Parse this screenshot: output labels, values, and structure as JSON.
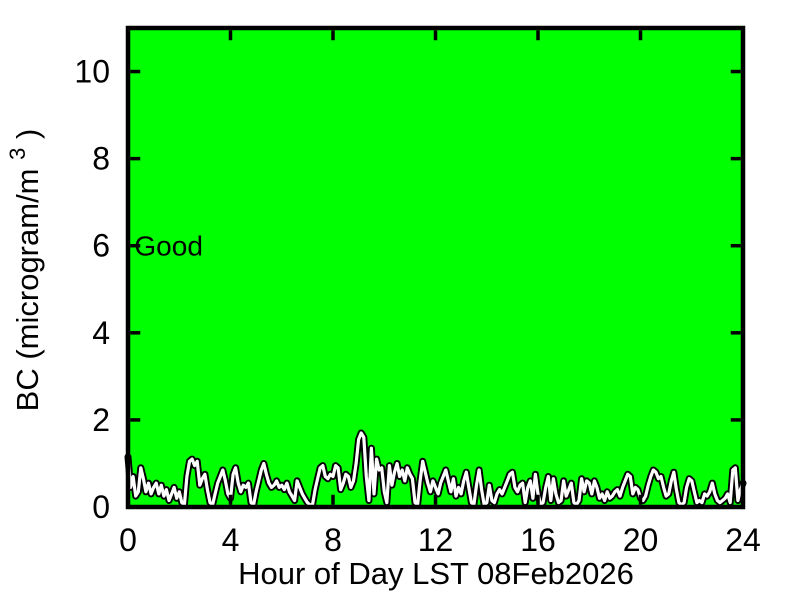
{
  "figure": {
    "background_color": "#ffffff",
    "text_color": "#000000"
  },
  "chart_data": {
    "type": "line",
    "title": "",
    "xlabel": "Hour of Day LST 08Feb2026",
    "ylabel": "BC (microgram/m³)",
    "ylabel_parts": {
      "pre": "BC (microgram/m",
      "sup": "3",
      "post": ")"
    },
    "xlim": [
      0,
      24
    ],
    "ylim": [
      0,
      11
    ],
    "xticks": [
      0,
      4,
      8,
      12,
      16,
      20,
      24
    ],
    "yticks": [
      0,
      2,
      4,
      6,
      8,
      10
    ],
    "grid": false,
    "legend": null,
    "plot_bg_color": "#00ff00",
    "axis_color": "#000000",
    "line_color": "#ffffff",
    "line_outline_color": "#000000",
    "annotation": {
      "text": "Good",
      "x_hours": 0.25,
      "y_value": 6
    },
    "series": [
      {
        "name": "BC",
        "x_start": 0,
        "x_step": 0.1,
        "values": [
          1.15,
          0.45,
          0.7,
          0.25,
          0.35,
          0.9,
          0.65,
          0.35,
          0.55,
          0.3,
          0.45,
          0.55,
          0.3,
          0.5,
          0.25,
          0.4,
          0.15,
          0.3,
          0.45,
          0.2,
          0.35,
          0.1,
          0.05,
          0.7,
          1.05,
          1.1,
          0.95,
          1.05,
          0.5,
          0.65,
          0.75,
          0.4,
          0.1,
          0.05,
          0.3,
          0.55,
          0.7,
          0.85,
          0.6,
          0.3,
          0.2,
          0.75,
          0.9,
          0.55,
          0.35,
          0.5,
          0.45,
          0.55,
          0.1,
          0.05,
          0.35,
          0.6,
          0.85,
          1.0,
          0.75,
          0.55,
          0.45,
          0.5,
          0.6,
          0.45,
          0.5,
          0.4,
          0.55,
          0.35,
          0.25,
          0.15,
          0.6,
          0.45,
          0.3,
          0.2,
          0.1,
          0.05,
          0.05,
          0.4,
          0.65,
          0.9,
          0.95,
          0.7,
          0.65,
          0.75,
          0.7,
          0.95,
          0.9,
          0.4,
          0.55,
          0.75,
          0.7,
          0.45,
          0.6,
          1.0,
          1.55,
          1.7,
          1.6,
          0.7,
          0.15,
          1.35,
          0.3,
          1.1,
          0.85,
          0.9,
          0.35,
          0.1,
          0.95,
          0.5,
          0.8,
          1.0,
          0.7,
          0.85,
          0.6,
          0.9,
          0.75,
          0.65,
          0.1,
          0.05,
          0.6,
          1.05,
          0.8,
          0.55,
          0.35,
          0.6,
          0.45,
          0.3,
          0.55,
          0.7,
          0.85,
          0.6,
          0.35,
          0.65,
          0.25,
          0.45,
          0.3,
          0.6,
          0.8,
          0.45,
          0.1,
          0.05,
          0.5,
          0.85,
          0.4,
          0.05,
          0.1,
          0.5,
          0.15,
          0.1,
          0.3,
          0.4,
          0.3,
          0.45,
          0.6,
          0.75,
          0.8,
          0.45,
          0.35,
          0.5,
          0.55,
          0.1,
          0.45,
          0.6,
          0.2,
          0.75,
          0.3,
          0.05,
          0.1,
          0.45,
          0.7,
          0.15,
          0.65,
          0.3,
          0.1,
          0.15,
          0.6,
          0.25,
          0.4,
          0.55,
          0.1,
          0.05,
          0.15,
          0.65,
          0.35,
          0.6,
          0.55,
          0.3,
          0.6,
          0.45,
          0.2,
          0.3,
          0.15,
          0.35,
          0.2,
          0.25,
          0.35,
          0.4,
          0.25,
          0.45,
          0.6,
          0.75,
          0.7,
          0.3,
          0.45,
          0.4,
          0.2,
          0.15,
          0.25,
          0.5,
          0.7,
          0.85,
          0.8,
          0.65,
          0.7,
          0.45,
          0.25,
          0.3,
          0.6,
          0.8,
          0.4,
          0.1,
          0.05,
          0.1,
          0.45,
          0.65,
          0.6,
          0.35,
          0.1,
          0.15,
          0.1,
          0.3,
          0.25,
          0.35,
          0.55,
          0.3,
          0.15,
          0.1,
          0.15,
          0.2,
          0.3,
          0.1,
          0.85,
          0.9,
          0.15,
          0.4,
          0.55
        ]
      }
    ]
  }
}
